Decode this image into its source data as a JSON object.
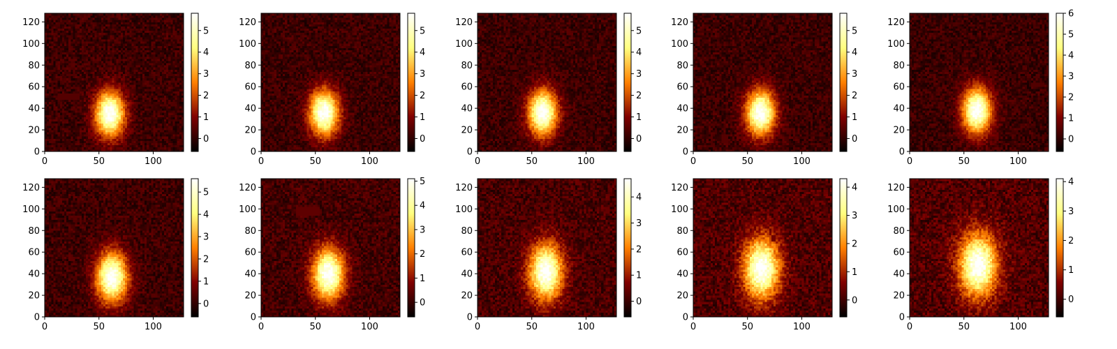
{
  "chart_data": {
    "type": "heatmap",
    "colormap": "afmhot",
    "colormap_stops": [
      "#000000",
      "#800000",
      "#ff8000",
      "#ffff80",
      "#ffffff"
    ],
    "grid": false,
    "panels": [
      {
        "id": "r1c1",
        "xlim": [
          0,
          128
        ],
        "ylim": [
          0,
          128
        ],
        "xticks": [
          0,
          50,
          100
        ],
        "yticks": [
          0,
          20,
          40,
          60,
          80,
          100,
          120
        ],
        "colorbar": {
          "vmin": -0.6,
          "vmax": 5.8,
          "ticks": [
            0,
            1,
            2,
            3,
            4,
            5
          ]
        },
        "blob": {
          "cx": 60,
          "cy": 35,
          "sx": 14,
          "sy": 22,
          "peak": 5.8,
          "background": 0.15
        },
        "defects": [
          {
            "x0": 13,
            "x1": 32,
            "y0": 48,
            "y1": 53
          }
        ]
      },
      {
        "id": "r1c2",
        "xlim": [
          0,
          128
        ],
        "ylim": [
          0,
          128
        ],
        "xticks": [
          0,
          50,
          100
        ],
        "yticks": [
          0,
          20,
          40,
          60,
          80,
          100,
          120
        ],
        "colorbar": {
          "vmin": -0.6,
          "vmax": 5.8,
          "ticks": [
            0,
            1,
            2,
            3,
            4,
            5
          ]
        },
        "blob": {
          "cx": 58,
          "cy": 36,
          "sx": 14,
          "sy": 22,
          "peak": 5.8,
          "background": 0.15
        },
        "defects": []
      },
      {
        "id": "r1c3",
        "xlim": [
          0,
          128
        ],
        "ylim": [
          0,
          128
        ],
        "xticks": [
          0,
          50,
          100
        ],
        "yticks": [
          0,
          20,
          40,
          60,
          80,
          100,
          120
        ],
        "colorbar": {
          "vmin": -0.6,
          "vmax": 5.8,
          "ticks": [
            0,
            1,
            2,
            3,
            4,
            5
          ]
        },
        "blob": {
          "cx": 60,
          "cy": 36,
          "sx": 14,
          "sy": 22,
          "peak": 5.8,
          "background": 0.15
        },
        "defects": []
      },
      {
        "id": "r1c4",
        "xlim": [
          0,
          128
        ],
        "ylim": [
          0,
          128
        ],
        "xticks": [
          0,
          50,
          100
        ],
        "yticks": [
          0,
          20,
          40,
          60,
          80,
          100,
          120
        ],
        "colorbar": {
          "vmin": -0.6,
          "vmax": 5.8,
          "ticks": [
            0,
            1,
            2,
            3,
            4,
            5
          ]
        },
        "blob": {
          "cx": 62,
          "cy": 36,
          "sx": 14,
          "sy": 22,
          "peak": 5.8,
          "background": 0.15
        },
        "defects": [
          {
            "x0": 27,
            "x1": 31,
            "y0": 9,
            "y1": 16
          }
        ]
      },
      {
        "id": "r1c5",
        "xlim": [
          0,
          128
        ],
        "ylim": [
          0,
          128
        ],
        "xticks": [
          0,
          50,
          100
        ],
        "yticks": [
          0,
          20,
          40,
          60,
          80,
          100,
          120
        ],
        "colorbar": {
          "vmin": -0.6,
          "vmax": 6.0,
          "ticks": [
            0,
            1,
            2,
            3,
            4,
            5,
            6
          ]
        },
        "blob": {
          "cx": 62,
          "cy": 38,
          "sx": 14,
          "sy": 22,
          "peak": 6.0,
          "background": 0.15
        },
        "defects": [
          {
            "x0": 74,
            "x1": 77,
            "y0": 70,
            "y1": 76
          },
          {
            "x0": 112,
            "x1": 124,
            "y0": 61,
            "y1": 64
          }
        ]
      },
      {
        "id": "r2c1",
        "xlim": [
          0,
          128
        ],
        "ylim": [
          0,
          128
        ],
        "xticks": [
          0,
          50,
          100
        ],
        "yticks": [
          0,
          20,
          40,
          60,
          80,
          100,
          120
        ],
        "colorbar": {
          "vmin": -0.6,
          "vmax": 5.6,
          "ticks": [
            0,
            1,
            2,
            3,
            4,
            5
          ]
        },
        "blob": {
          "cx": 62,
          "cy": 37,
          "sx": 15,
          "sy": 24,
          "peak": 5.6,
          "background": 0.15
        },
        "defects": []
      },
      {
        "id": "r2c2",
        "xlim": [
          0,
          128
        ],
        "ylim": [
          0,
          128
        ],
        "xticks": [
          0,
          50,
          100
        ],
        "yticks": [
          0,
          20,
          40,
          60,
          80,
          100,
          120
        ],
        "colorbar": {
          "vmin": -0.6,
          "vmax": 5.1,
          "ticks": [
            0,
            1,
            2,
            3,
            4,
            5
          ]
        },
        "blob": {
          "cx": 62,
          "cy": 40,
          "sx": 15,
          "sy": 25,
          "peak": 5.1,
          "background": 0.15
        },
        "defects": [
          {
            "x0": 33,
            "x1": 53,
            "y0": 95,
            "y1": 102
          }
        ]
      },
      {
        "id": "r2c3",
        "xlim": [
          0,
          128
        ],
        "ylim": [
          0,
          128
        ],
        "xticks": [
          0,
          50,
          100
        ],
        "yticks": [
          0,
          20,
          40,
          60,
          80,
          100,
          120
        ],
        "colorbar": {
          "vmin": -0.6,
          "vmax": 4.7,
          "ticks": [
            0,
            1,
            2,
            3,
            4
          ]
        },
        "blob": {
          "cx": 63,
          "cy": 42,
          "sx": 16,
          "sy": 27,
          "peak": 4.7,
          "background": 0.15
        },
        "defects": [
          {
            "x0": 118,
            "x1": 122,
            "y0": 96,
            "y1": 102
          }
        ]
      },
      {
        "id": "r2c4",
        "xlim": [
          0,
          128
        ],
        "ylim": [
          0,
          128
        ],
        "xticks": [
          0,
          50,
          100
        ],
        "yticks": [
          0,
          20,
          40,
          60,
          80,
          100,
          120
        ],
        "colorbar": {
          "vmin": -0.6,
          "vmax": 4.3,
          "ticks": [
            0,
            1,
            2,
            3,
            4
          ]
        },
        "blob": {
          "cx": 63,
          "cy": 45,
          "sx": 17,
          "sy": 29,
          "peak": 4.3,
          "background": 0.15
        },
        "defects": [
          {
            "x0": 73,
            "x1": 76,
            "y0": 70,
            "y1": 76
          }
        ]
      },
      {
        "id": "r2c5",
        "xlim": [
          0,
          128
        ],
        "ylim": [
          0,
          128
        ],
        "xticks": [
          0,
          50,
          100
        ],
        "yticks": [
          0,
          20,
          40,
          60,
          80,
          100,
          120
        ],
        "colorbar": {
          "vmin": -0.6,
          "vmax": 4.1,
          "ticks": [
            0,
            1,
            2,
            3,
            4
          ]
        },
        "blob": {
          "cx": 63,
          "cy": 48,
          "sx": 18,
          "sy": 30,
          "peak": 4.1,
          "background": 0.15
        },
        "defects": []
      }
    ]
  }
}
